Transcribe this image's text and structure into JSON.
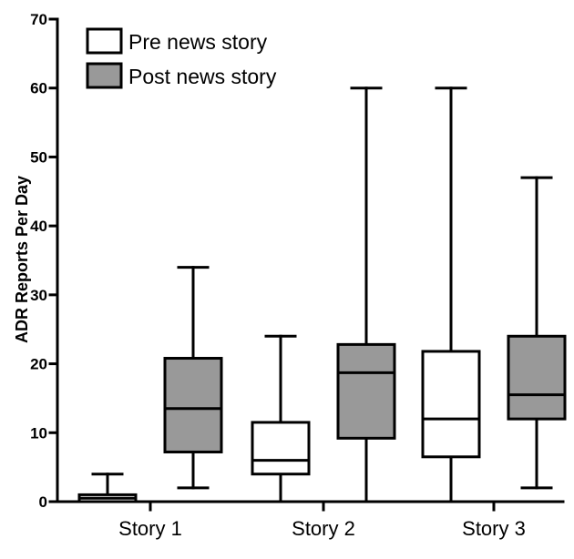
{
  "chart_data": {
    "type": "boxplot",
    "ylabel": "ADR Reports Per Day",
    "ylim": [
      0,
      70
    ],
    "yticks": [
      "0",
      "10",
      "20",
      "30",
      "40",
      "50",
      "60",
      "70"
    ],
    "categories": [
      "Story 1",
      "Story 2",
      "Story 3"
    ],
    "legend_position": "top-left",
    "grid": false,
    "series": [
      {
        "name": "Pre news story",
        "color": "#ffffff",
        "boxes": [
          {
            "min": 0,
            "q1": 0,
            "median": 0.5,
            "q3": 1,
            "max": 4
          },
          {
            "min": 0,
            "q1": 4,
            "median": 6,
            "q3": 11.5,
            "max": 24
          },
          {
            "min": 0,
            "q1": 6.5,
            "median": 12,
            "q3": 21.8,
            "max": 60
          }
        ]
      },
      {
        "name": "Post news story",
        "color": "#999999",
        "boxes": [
          {
            "min": 2,
            "q1": 7.2,
            "median": 13.5,
            "q3": 20.8,
            "max": 34
          },
          {
            "min": 0,
            "q1": 9.2,
            "median": 18.7,
            "q3": 22.8,
            "max": 60
          },
          {
            "min": 2,
            "q1": 12,
            "median": 15.5,
            "q3": 24,
            "max": 47
          }
        ]
      }
    ]
  }
}
